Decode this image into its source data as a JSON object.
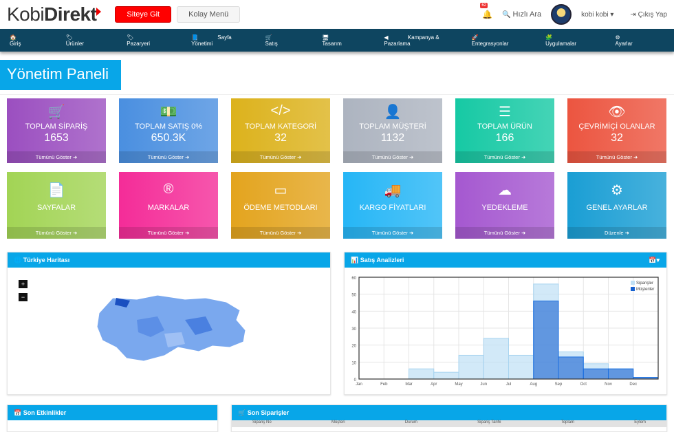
{
  "header": {
    "logo_a": "Kobi",
    "logo_b": "Direkt",
    "site_button": "Siteye Git",
    "easy_menu": "Kolay Menü",
    "notif_count": "62",
    "quick_search": "Hızlı Ara",
    "user": "kobi kobi",
    "logout": "Çıkış Yap"
  },
  "nav": [
    "Giriş",
    "Ürünler",
    "Pazaryeri",
    "Sayfa Yönetimi",
    "Satış",
    "Tasarım",
    "Kampanya & Pazarlama",
    "Entegrasyonlar",
    "Uygulamalar",
    "Ayarlar"
  ],
  "page_title": "Yönetim Paneli",
  "cards": [
    {
      "icon": "🛒",
      "label": "TOPLAM SİPARİŞ",
      "value": "1653",
      "footer": "Tümünü Göster ➜",
      "color": "#9b4fc0"
    },
    {
      "icon": "💵",
      "label": "TOPLAM SATIŞ 0%",
      "value": "650.3K",
      "footer": "Tümünü Göster ➜",
      "color": "#4a8fe0"
    },
    {
      "icon": "</>",
      "label": "TOPLAM KATEGORİ",
      "value": "32",
      "footer": "Tümünü Göster ➜",
      "color": "#dcb21c"
    },
    {
      "icon": "👤",
      "label": "TOPLAM MÜŞTERİ",
      "value": "1132",
      "footer": "Tümünü Göster ➜",
      "color": "#adb4c0"
    },
    {
      "icon": "☰",
      "label": "TOPLAM ÜRÜN",
      "value": "166",
      "footer": "Tümünü Göster ➜",
      "color": "#16c9a4"
    },
    {
      "icon": "👁",
      "label": "ÇEVRİMİÇİ OLANLAR",
      "value": "32",
      "footer": "Tümünü Göster ➜",
      "color": "#ec5540"
    },
    {
      "icon": "📄",
      "label": "SAYFALAR",
      "value": "",
      "footer": "Tümünü Göster ➜",
      "color": "#a2d455"
    },
    {
      "icon": "®",
      "label": "MARKALAR",
      "value": "",
      "footer": "Tümünü Göster ➜",
      "color": "#f42c98"
    },
    {
      "icon": "▭",
      "label": "ÖDEME METODLARI",
      "value": "",
      "footer": "Tümünü Göster ➜",
      "color": "#e3a41e"
    },
    {
      "icon": "🚚",
      "label": "KARGO FİYATLARI",
      "value": "",
      "footer": "Tümünü Göster ➜",
      "color": "#26b6f6"
    },
    {
      "icon": "☁",
      "label": "YEDEKLEME",
      "value": "",
      "footer": "Tümünü Göster ➜",
      "color": "#a558d0"
    },
    {
      "icon": "⚙",
      "label": "GENEL AYARLAR",
      "value": "",
      "footer": "Düzenle ➜",
      "color": "#1a9ed4"
    }
  ],
  "map_panel": {
    "title": "Türkiye Haritası",
    "zoom_in": "+",
    "zoom_out": "−"
  },
  "chart_panel": {
    "title": "Satış Analizleri"
  },
  "activities_panel": {
    "title": "Son Etkinlikler"
  },
  "orders_panel": {
    "title": "Son Siparişler",
    "columns": [
      "Sipariş No",
      "Müşteri",
      "Durum",
      "Sipariş Tarihi",
      "Toplam",
      "Eylem"
    ]
  },
  "chart_data": {
    "type": "bar",
    "categories": [
      "Jan",
      "Feb",
      "Mar",
      "Apr",
      "May",
      "Jun",
      "Jul",
      "Aug",
      "Sep",
      "Oct",
      "Nov",
      "Dec"
    ],
    "series": [
      {
        "name": "Siparişler",
        "values": [
          0,
          0,
          6,
          4,
          14,
          24,
          14,
          56,
          16,
          9,
          6,
          1
        ],
        "color": "#bfe0f5"
      },
      {
        "name": "Müşteriler",
        "values": [
          0,
          0,
          0,
          0,
          0,
          0,
          0,
          46,
          13,
          6,
          6,
          1
        ],
        "color": "#1560d0"
      }
    ],
    "ylim": [
      0,
      60
    ],
    "yticks": [
      0,
      10,
      20,
      30,
      40,
      50,
      60
    ],
    "legend": "top-right",
    "grid": true
  }
}
